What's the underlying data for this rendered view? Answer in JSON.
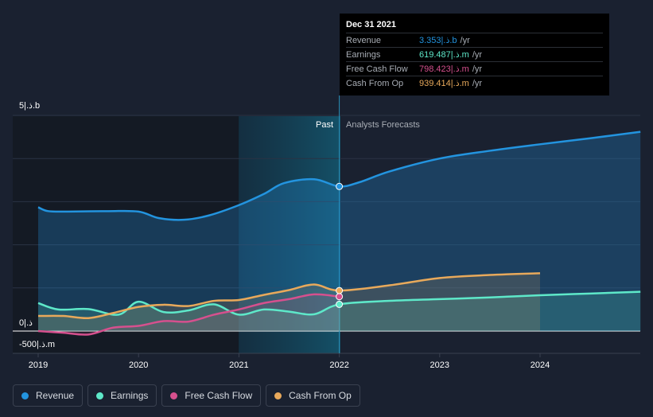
{
  "chart_data": {
    "type": "line",
    "y_axis_labels": {
      "top": "5|.ذ.b",
      "zero": "0|.ذ",
      "bottom": "-500|.ذ.m"
    },
    "x_ticks": [
      "2019",
      "2020",
      "2021",
      "2022",
      "2023",
      "2024"
    ],
    "past_label": "Past",
    "forecast_label": "Analysts Forecasts",
    "series": [
      {
        "name": "Revenue",
        "color": "#2394df",
        "unit_suffix": "b",
        "x": [
          2019.0,
          2019.1,
          2019.3,
          2019.7,
          2020.0,
          2020.2,
          2020.45,
          2020.7,
          2021.0,
          2021.25,
          2021.45,
          2021.75,
          2022.0,
          2022.2,
          2022.5,
          2023.0,
          2023.5,
          2024.0,
          2024.5,
          2025.0
        ],
        "y": [
          2.87,
          2.78,
          2.77,
          2.78,
          2.77,
          2.62,
          2.58,
          2.68,
          2.92,
          3.18,
          3.43,
          3.52,
          3.353,
          3.45,
          3.7,
          4.0,
          4.18,
          4.33,
          4.47,
          4.62
        ]
      },
      {
        "name": "Earnings",
        "color": "#5ee8c9",
        "unit_suffix": "m",
        "x": [
          2019.0,
          2019.2,
          2019.5,
          2019.8,
          2020.0,
          2020.25,
          2020.5,
          2020.75,
          2021.0,
          2021.25,
          2021.5,
          2021.75,
          2022.0,
          2022.5,
          2023.0,
          2023.5,
          2024.0,
          2024.5,
          2025.0
        ],
        "y": [
          650,
          500,
          510,
          380,
          680,
          440,
          480,
          620,
          380,
          500,
          450,
          390,
          619.487,
          700,
          740,
          780,
          830,
          870,
          910
        ]
      },
      {
        "name": "Free Cash Flow",
        "color": "#d6508e",
        "unit_suffix": "m",
        "x": [
          2019.0,
          2019.25,
          2019.5,
          2019.75,
          2020.0,
          2020.25,
          2020.5,
          2020.75,
          2021.0,
          2021.25,
          2021.5,
          2021.75,
          2022.0
        ],
        "y": [
          0,
          -40,
          -80,
          80,
          120,
          230,
          220,
          380,
          500,
          650,
          740,
          850,
          798.423
        ]
      },
      {
        "name": "Cash From Op",
        "color": "#e8a95b",
        "unit_suffix": "m",
        "x": [
          2019.0,
          2019.25,
          2019.5,
          2019.75,
          2020.0,
          2020.25,
          2020.5,
          2020.75,
          2021.0,
          2021.25,
          2021.5,
          2021.75,
          2022.0,
          2022.5,
          2023.0,
          2023.5,
          2024.0
        ],
        "y": [
          350,
          350,
          300,
          420,
          560,
          610,
          580,
          700,
          720,
          840,
          950,
          1080,
          939.414,
          1060,
          1230,
          1300,
          1340
        ]
      }
    ],
    "tooltip": {
      "date": "Dec 31 2021",
      "rows": [
        {
          "name": "Revenue",
          "value": "3.353|.ذ.b",
          "unit": "/yr",
          "color": "#2394df"
        },
        {
          "name": "Earnings",
          "value": "619.487|.ذ.m",
          "unit": "/yr",
          "color": "#5ee8c9"
        },
        {
          "name": "Free Cash Flow",
          "value": "798.423|.ذ.m",
          "unit": "/yr",
          "color": "#d6508e"
        },
        {
          "name": "Cash From Op",
          "value": "939.414|.ذ.m",
          "unit": "/yr",
          "color": "#e8a95b"
        }
      ]
    },
    "past_end_x": 2022.0,
    "grid": true
  },
  "legend": [
    {
      "label": "Revenue",
      "color": "#2394df"
    },
    {
      "label": "Earnings",
      "color": "#5ee8c9"
    },
    {
      "label": "Free Cash Flow",
      "color": "#d6508e"
    },
    {
      "label": "Cash From Op",
      "color": "#e8a95b"
    }
  ]
}
